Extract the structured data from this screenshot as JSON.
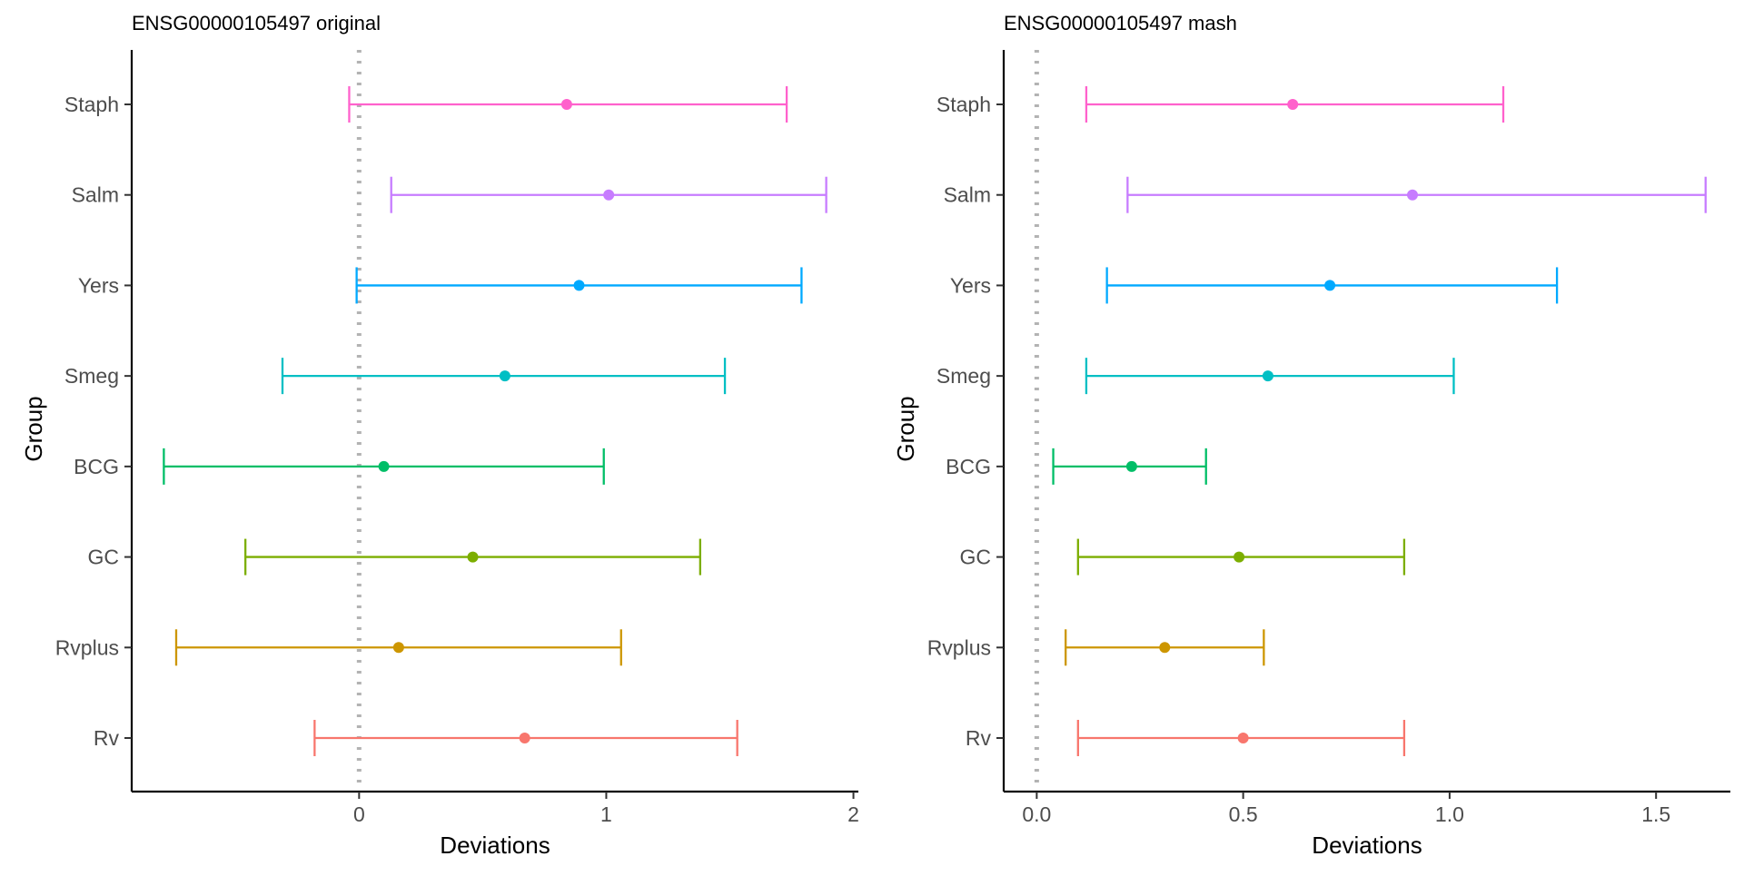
{
  "chart_data": [
    {
      "type": "errorbar",
      "title": "ENSG00000105497 original",
      "xlabel": "Deviations",
      "ylabel": "Group",
      "xlim": [
        -0.92,
        2.02
      ],
      "xticks": [
        0,
        1,
        2
      ],
      "xtick_labels": [
        "0",
        "1",
        "2"
      ],
      "reference_line": 0,
      "categories": [
        "Rv",
        "Rvplus",
        "GC",
        "BCG",
        "Smeg",
        "Yers",
        "Salm",
        "Staph"
      ],
      "colors": [
        "#F8766D",
        "#CD9600",
        "#7CAE00",
        "#00BE67",
        "#00BFC4",
        "#00A9FF",
        "#C77CFF",
        "#FF61CC"
      ],
      "estimates": [
        0.67,
        0.16,
        0.46,
        0.1,
        0.59,
        0.89,
        1.01,
        0.84
      ],
      "lower": [
        -0.18,
        -0.74,
        -0.46,
        -0.79,
        -0.31,
        -0.01,
        0.13,
        -0.04
      ],
      "upper": [
        1.53,
        1.06,
        1.38,
        0.99,
        1.48,
        1.79,
        1.89,
        1.73
      ]
    },
    {
      "type": "errorbar",
      "title": "ENSG00000105497 mash",
      "xlabel": "Deviations",
      "ylabel": "Group",
      "xlim": [
        -0.08,
        1.68
      ],
      "xticks": [
        0,
        0.5,
        1,
        1.5
      ],
      "xtick_labels": [
        "0.0",
        "0.5",
        "1.0",
        "1.5"
      ],
      "reference_line": 0,
      "categories": [
        "Rv",
        "Rvplus",
        "GC",
        "BCG",
        "Smeg",
        "Yers",
        "Salm",
        "Staph"
      ],
      "colors": [
        "#F8766D",
        "#CD9600",
        "#7CAE00",
        "#00BE67",
        "#00BFC4",
        "#00A9FF",
        "#C77CFF",
        "#FF61CC"
      ],
      "estimates": [
        0.5,
        0.31,
        0.49,
        0.23,
        0.56,
        0.71,
        0.91,
        0.62
      ],
      "lower": [
        0.1,
        0.07,
        0.1,
        0.04,
        0.12,
        0.17,
        0.22,
        0.12
      ],
      "upper": [
        0.89,
        0.55,
        0.89,
        0.41,
        1.01,
        1.26,
        1.62,
        1.13
      ]
    }
  ]
}
